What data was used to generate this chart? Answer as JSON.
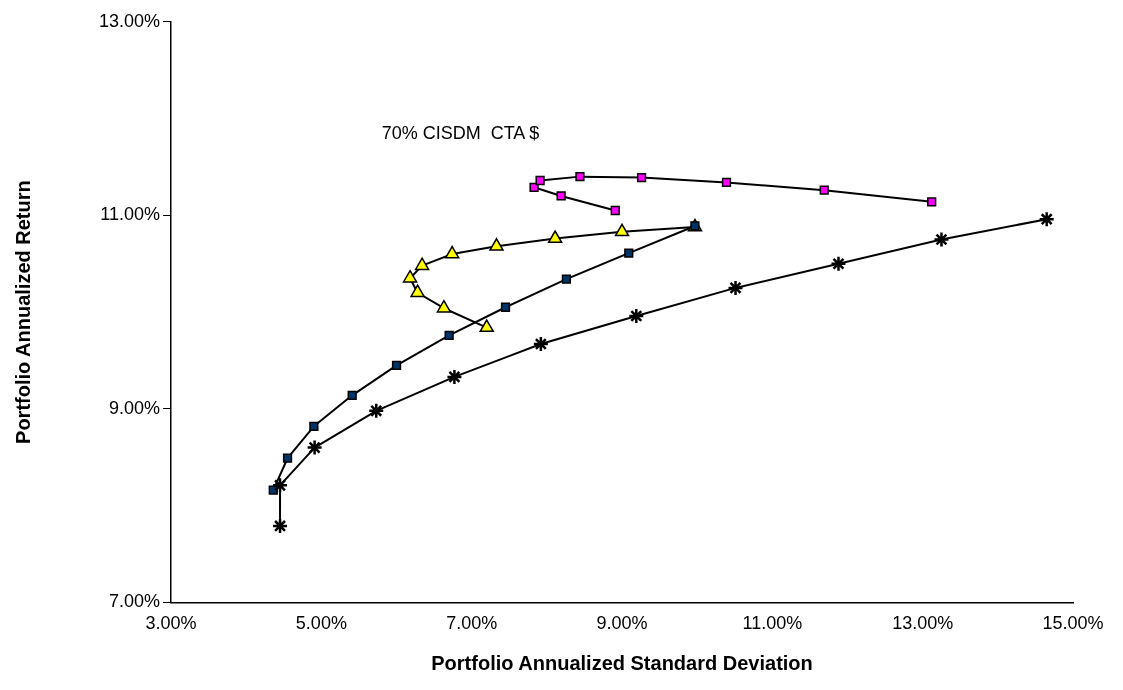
{
  "chart_data": {
    "type": "scatter",
    "xlabel": "Portfolio Annualized Standard Deviation",
    "ylabel": "Portfolio Annualized Return",
    "xlim": [
      3,
      15
    ],
    "ylim": [
      7,
      13
    ],
    "xticks": [
      {
        "value": 3,
        "label": "3.00%"
      },
      {
        "value": 5,
        "label": "5.00%"
      },
      {
        "value": 7,
        "label": "7.00%"
      },
      {
        "value": 9,
        "label": "9.00%"
      },
      {
        "value": 11,
        "label": "11.00%"
      },
      {
        "value": 13,
        "label": "13.00%"
      },
      {
        "value": 15,
        "label": "15.00%"
      }
    ],
    "yticks": [
      {
        "value": 7,
        "label": "7.00%"
      },
      {
        "value": 9,
        "label": "9.00%"
      },
      {
        "value": 11,
        "label": "11.00%"
      },
      {
        "value": 13,
        "label": "13.00%"
      }
    ],
    "grid": false,
    "legend": false,
    "line_style": "solid",
    "annotations": [
      "70% CISDM  CTA $"
    ],
    "series": [
      {
        "type": "line",
        "marker": "cross",
        "color": "#000000",
        "x": [
          4.45,
          4.45,
          4.91,
          5.73,
          6.77,
          7.92,
          9.19,
          10.51,
          11.88,
          13.25,
          14.65
        ],
        "values": [
          7.79,
          8.21,
          8.6,
          8.98,
          9.33,
          9.67,
          9.96,
          10.25,
          10.5,
          10.75,
          10.96
        ]
      },
      {
        "type": "line",
        "marker": "square",
        "color": "#003366",
        "x": [
          4.36,
          4.55,
          4.9,
          5.41,
          6.0,
          6.7,
          7.45,
          8.26,
          9.09,
          9.97
        ],
        "values": [
          8.16,
          8.49,
          8.82,
          9.14,
          9.45,
          9.76,
          10.05,
          10.34,
          10.61,
          10.89
        ]
      },
      {
        "type": "line",
        "marker": "triangle",
        "color": "#ffff00",
        "x": [
          9.97,
          9.0,
          8.11,
          7.33,
          6.74,
          6.34,
          6.18,
          6.28,
          6.63,
          7.2
        ],
        "values": [
          10.88,
          10.83,
          10.76,
          10.68,
          10.6,
          10.48,
          10.35,
          10.2,
          10.04,
          9.84
        ]
      },
      {
        "type": "line",
        "marker": "square",
        "color": "#ff00ff",
        "x": [
          8.91,
          8.19,
          7.83,
          7.91,
          8.44,
          9.26,
          10.39,
          11.69,
          13.12
        ],
        "values": [
          11.05,
          11.2,
          11.29,
          11.36,
          11.4,
          11.39,
          11.34,
          11.26,
          11.14
        ]
      }
    ]
  }
}
